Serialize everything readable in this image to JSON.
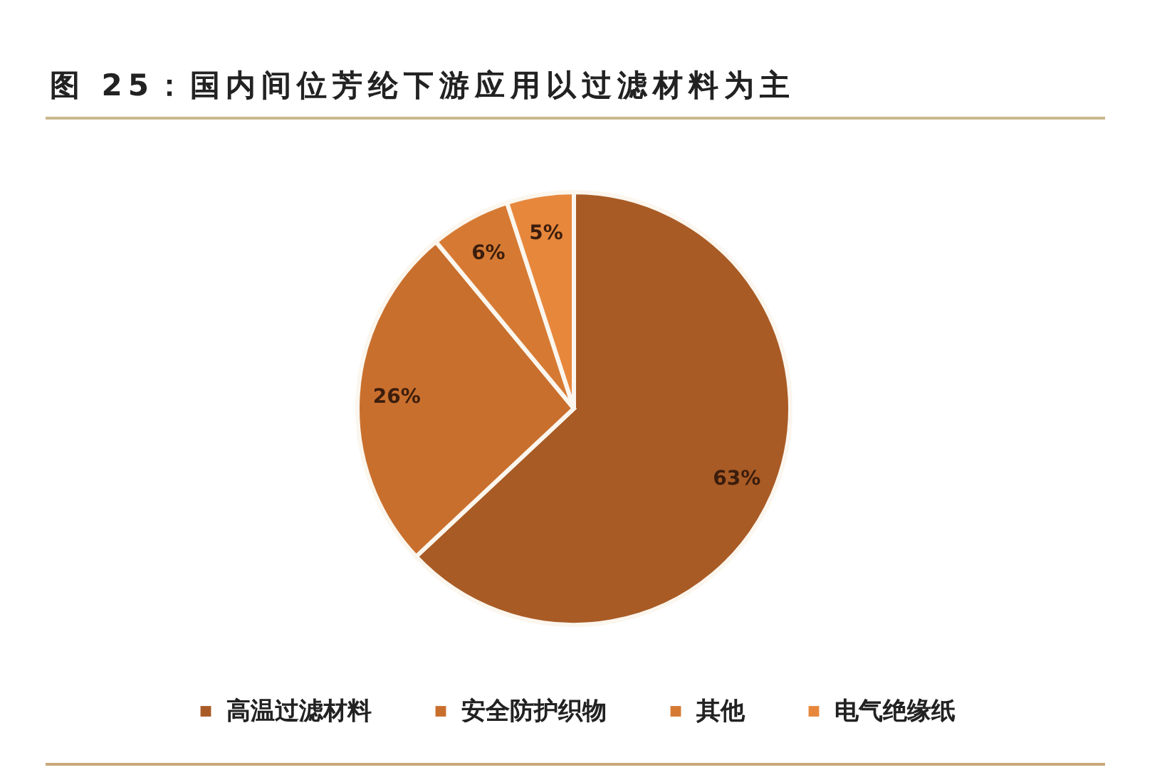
{
  "chart_data": {
    "type": "pie",
    "title": "图 25：国内间位芳纶下游应用以过滤材料为主",
    "categories": [
      "高温过滤材料",
      "安全防护织物",
      "其他",
      "电气绝缘纸"
    ],
    "values": [
      63,
      26,
      6,
      5
    ],
    "colors": [
      "#a95b25",
      "#c96f2d",
      "#d67a33",
      "#e7873c"
    ],
    "value_labels": [
      "63%",
      "26%",
      "6%",
      "5%"
    ],
    "legend": "bottom"
  }
}
